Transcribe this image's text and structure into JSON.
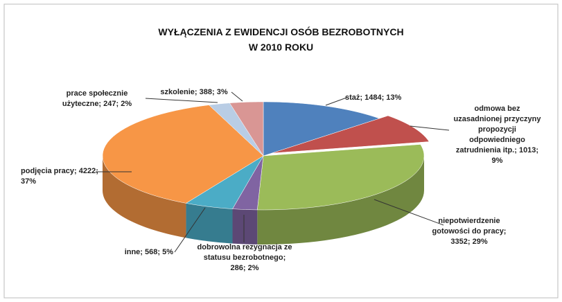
{
  "chart_data": {
    "type": "pie3d",
    "title": "WYŁĄCZENIA Z EWIDENCJI OSÓB BEZROBOTNYCH",
    "subtitle": "W 2010 ROKU",
    "values": [
      1484,
      1013,
      3352,
      286,
      568,
      4222,
      247,
      388
    ],
    "value_labels": [
      "staż; 1484; 13%",
      "odmowa bez uzasadnionej przyczyny propozycji odpowiedniego zatrudnienia itp.; 1013; 9%",
      "niepotwierdzenie gotowości do pracy; 3352; 29%",
      "dobrowolna rezygnacja ze statusu bezrobotnego; 286; 2%",
      "inne; 568; 5%",
      "podjęcia pracy; 4222; 37%",
      "prace społecznie użyteczne; 247; 2%",
      "szkolenie; 388; 3%"
    ],
    "colors": [
      "#4f81bd",
      "#c0504d",
      "#9bbb59",
      "#8064a2",
      "#4bacc6",
      "#f79646",
      "#b9cde5",
      "#d99694"
    ],
    "exploded": [
      1
    ]
  }
}
